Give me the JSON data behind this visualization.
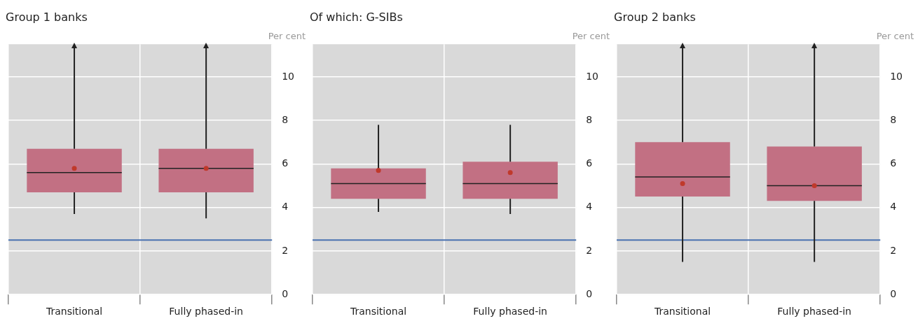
{
  "chart_data": [
    {
      "type": "box",
      "title": "Group 1 banks",
      "ylabel": "Per cent",
      "categories": [
        "Transitional",
        "Fully phased-in"
      ],
      "color": "#c27083",
      "ylim": [
        0,
        11.5
      ],
      "yticks": [
        0,
        2,
        4,
        6,
        8,
        10
      ],
      "grid": true,
      "boxes": [
        {
          "low": 3.7,
          "q1": 4.7,
          "median": 5.6,
          "q3": 6.7,
          "high": 11.5,
          "mean": 5.8
        },
        {
          "low": 3.5,
          "q1": 4.7,
          "median": 5.8,
          "q3": 6.7,
          "high": 11.5,
          "mean": 5.8
        }
      ],
      "ref_lines": [
        {
          "axis": "y",
          "value": 2.5,
          "color": "#4a72b0"
        }
      ]
    },
    {
      "type": "box",
      "title": "Of which: G-SIBs",
      "ylabel": "Per cent",
      "categories": [
        "Transitional",
        "Fully phased-in"
      ],
      "color": "#c27083",
      "ylim": [
        0,
        11.5
      ],
      "yticks": [
        0,
        2,
        4,
        6,
        8,
        10
      ],
      "grid": true,
      "boxes": [
        {
          "low": 3.8,
          "q1": 4.4,
          "median": 5.1,
          "q3": 5.8,
          "high": 7.8,
          "mean": 5.7
        },
        {
          "low": 3.7,
          "q1": 4.4,
          "median": 5.1,
          "q3": 6.1,
          "high": 7.8,
          "mean": 5.6
        }
      ],
      "ref_lines": [
        {
          "axis": "y",
          "value": 2.5,
          "color": "#4a72b0"
        }
      ]
    },
    {
      "type": "box",
      "title": "Group 2 banks",
      "ylabel": "Per cent",
      "categories": [
        "Transitional",
        "Fully phased-in"
      ],
      "color": "#c27083",
      "ylim": [
        0,
        11.5
      ],
      "yticks": [
        0,
        2,
        4,
        6,
        8,
        10
      ],
      "grid": true,
      "boxes": [
        {
          "low": 1.5,
          "q1": 4.5,
          "median": 5.4,
          "q3": 7.0,
          "high": 11.5,
          "mean": 5.1
        },
        {
          "low": 1.5,
          "q1": 4.3,
          "median": 5.0,
          "q3": 6.8,
          "high": 11.5,
          "mean": 5.0
        }
      ],
      "ref_lines": [
        {
          "axis": "y",
          "value": 2.5,
          "color": "#4a72b0"
        }
      ]
    }
  ]
}
